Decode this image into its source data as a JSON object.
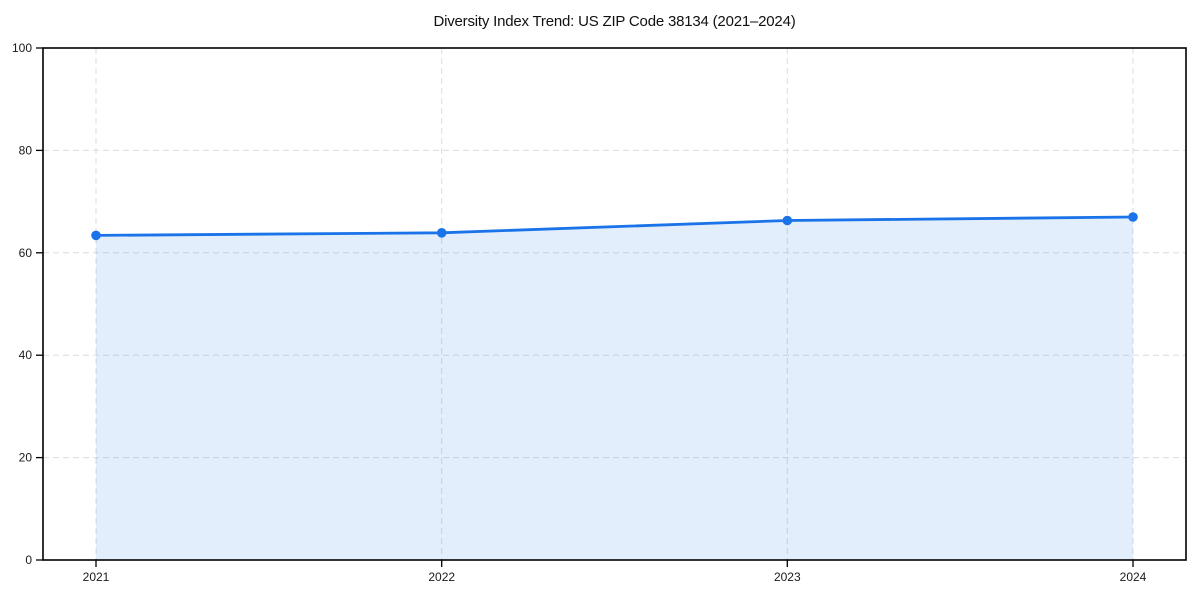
{
  "page": {
    "background_color": "#ffffff"
  },
  "chart_data": {
    "type": "area",
    "title": "Diversity Index Trend: US ZIP Code 38134 (2021–2024)",
    "categories": [
      "2021",
      "2022",
      "2023",
      "2024"
    ],
    "series": [
      {
        "name": "Diversity Index",
        "values": [
          63.4,
          63.9,
          66.3,
          67.0
        ]
      }
    ],
    "xlabel": "",
    "ylabel": "",
    "ylim": [
      0,
      100
    ],
    "yticks": [
      0,
      20,
      40,
      60,
      80,
      100
    ],
    "grid": true,
    "grid_style": "dashed",
    "legend_position": "none",
    "line_color": "#1a73e8",
    "marker_color": "#1a73e8",
    "marker_shape": "circle",
    "fill_color": "#1a73e8",
    "fill_opacity": 0.12,
    "gridline_color": "#dcdcdc",
    "axis_color": "#000000",
    "tick_label_color": "#1a1a1a",
    "title_color": "#111111"
  }
}
